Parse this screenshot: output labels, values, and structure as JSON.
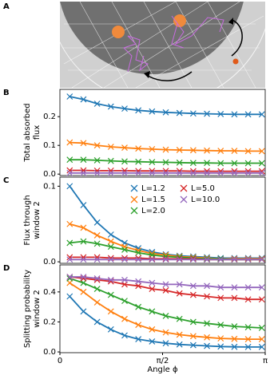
{
  "panel_a": {
    "label": "A"
  },
  "chart_data": [
    {
      "type": "line",
      "panel": "B",
      "ylabel": [
        "Total absorbed",
        "flux"
      ],
      "x": [
        0.15,
        0.36,
        0.57,
        0.78,
        0.99,
        1.2,
        1.41,
        1.62,
        1.83,
        2.04,
        2.25,
        2.46,
        2.67,
        2.88,
        3.09
      ],
      "xlim": [
        0,
        3.1416
      ],
      "ylim": [
        -0.005,
        0.295
      ],
      "yticks": [
        {
          "value": 0,
          "label": "0.0"
        },
        0.1,
        0.2
      ],
      "series": [
        {
          "name": "L=1.2",
          "color": "#1f77b4",
          "values": [
            0.27,
            0.26,
            0.245,
            0.235,
            0.228,
            0.222,
            0.218,
            0.215,
            0.213,
            0.211,
            0.21,
            0.209,
            0.208,
            0.208,
            0.208
          ]
        },
        {
          "name": "L=1.5",
          "color": "#ff7f0e",
          "values": [
            0.11,
            0.108,
            0.1,
            0.095,
            0.092,
            0.089,
            0.087,
            0.085,
            0.084,
            0.083,
            0.082,
            0.081,
            0.081,
            0.08,
            0.08
          ]
        },
        {
          "name": "L=2.0",
          "color": "#2ca02c",
          "values": [
            0.05,
            0.05,
            0.048,
            0.046,
            0.044,
            0.043,
            0.042,
            0.041,
            0.04,
            0.039,
            0.039,
            0.038,
            0.038,
            0.038,
            0.038
          ]
        },
        {
          "name": "L=5.0",
          "color": "#d62728",
          "values": [
            0.013,
            0.013,
            0.012,
            0.012,
            0.012,
            0.011,
            0.011,
            0.011,
            0.011,
            0.01,
            0.01,
            0.01,
            0.01,
            0.01,
            0.01
          ]
        },
        {
          "name": "L=10.0",
          "color": "#9467bd",
          "values": [
            0.004,
            0.004,
            0.004,
            0.004,
            0.004,
            0.004,
            0.004,
            0.004,
            0.004,
            0.004,
            0.004,
            0.004,
            0.004,
            0.004,
            0.004
          ]
        }
      ]
    },
    {
      "type": "line",
      "panel": "C",
      "ylabel": [
        "Flux through",
        "window 2"
      ],
      "legend": "upper right",
      "x": [
        0.15,
        0.36,
        0.57,
        0.78,
        0.99,
        1.2,
        1.41,
        1.62,
        1.83,
        2.04,
        2.25,
        2.46,
        2.67,
        2.88,
        3.09
      ],
      "xlim": [
        0,
        3.1416
      ],
      "ylim": [
        -0.002,
        0.112
      ],
      "yticks": [
        {
          "value": 0,
          "label": "0.0"
        },
        0.1
      ],
      "series": [
        {
          "name": "L=1.2",
          "color": "#1f77b4",
          "values": [
            0.1,
            0.075,
            0.052,
            0.036,
            0.025,
            0.018,
            0.013,
            0.01,
            0.008,
            0.007,
            0.006,
            0.005,
            0.005,
            0.005,
            0.005
          ]
        },
        {
          "name": "L=1.5",
          "color": "#ff7f0e",
          "values": [
            0.05,
            0.045,
            0.035,
            0.027,
            0.02,
            0.015,
            0.011,
            0.009,
            0.007,
            0.006,
            0.005,
            0.004,
            0.004,
            0.004,
            0.004
          ]
        },
        {
          "name": "L=2.0",
          "color": "#2ca02c",
          "values": [
            0.025,
            0.027,
            0.024,
            0.02,
            0.016,
            0.012,
            0.009,
            0.007,
            0.006,
            0.005,
            0.004,
            0.004,
            0.003,
            0.003,
            0.003
          ]
        },
        {
          "name": "L=5.0",
          "color": "#d62728",
          "values": [
            0.006,
            0.006,
            0.006,
            0.005,
            0.005,
            0.005,
            0.004,
            0.004,
            0.004,
            0.004,
            0.003,
            0.003,
            0.003,
            0.003,
            0.003
          ]
        },
        {
          "name": "L=10.0",
          "color": "#9467bd",
          "values": [
            0.003,
            0.003,
            0.003,
            0.003,
            0.003,
            0.003,
            0.003,
            0.003,
            0.003,
            0.003,
            0.003,
            0.003,
            0.003,
            0.003,
            0.003
          ]
        }
      ]
    },
    {
      "type": "line",
      "panel": "D",
      "ylabel": [
        "Splitting probability",
        "window 2"
      ],
      "xlabel": "Angle ϕ",
      "x": [
        0.15,
        0.36,
        0.57,
        0.78,
        0.99,
        1.2,
        1.41,
        1.62,
        1.83,
        2.04,
        2.25,
        2.46,
        2.67,
        2.88,
        3.09
      ],
      "xlim": [
        0,
        3.1416
      ],
      "ylim": [
        -0.005,
        0.58
      ],
      "xticks": [
        0,
        {
          "value": 1.5708,
          "label": "π/2"
        },
        {
          "value": 3.1416,
          "label": "π"
        }
      ],
      "yticks": [
        {
          "value": 0,
          "label": "0.0"
        },
        0.2,
        0.4
      ],
      "series": [
        {
          "name": "L=1.2",
          "color": "#1f77b4",
          "values": [
            0.37,
            0.27,
            0.2,
            0.15,
            0.11,
            0.085,
            0.07,
            0.058,
            0.05,
            0.045,
            0.04,
            0.036,
            0.034,
            0.033,
            0.033
          ]
        },
        {
          "name": "L=1.5",
          "color": "#ff7f0e",
          "values": [
            0.46,
            0.4,
            0.33,
            0.27,
            0.22,
            0.18,
            0.15,
            0.13,
            0.115,
            0.105,
            0.097,
            0.09,
            0.087,
            0.085,
            0.085
          ]
        },
        {
          "name": "L=2.0",
          "color": "#2ca02c",
          "values": [
            0.49,
            0.46,
            0.42,
            0.38,
            0.34,
            0.3,
            0.27,
            0.24,
            0.22,
            0.2,
            0.19,
            0.18,
            0.17,
            0.165,
            0.16
          ]
        },
        {
          "name": "L=5.0",
          "color": "#d62728",
          "values": [
            0.5,
            0.49,
            0.48,
            0.47,
            0.45,
            0.44,
            0.42,
            0.41,
            0.39,
            0.38,
            0.37,
            0.36,
            0.36,
            0.35,
            0.35
          ]
        },
        {
          "name": "L=10.0",
          "color": "#9467bd",
          "values": [
            0.5,
            0.5,
            0.49,
            0.48,
            0.48,
            0.47,
            0.46,
            0.45,
            0.45,
            0.44,
            0.44,
            0.43,
            0.43,
            0.43,
            0.43
          ]
        }
      ]
    }
  ]
}
